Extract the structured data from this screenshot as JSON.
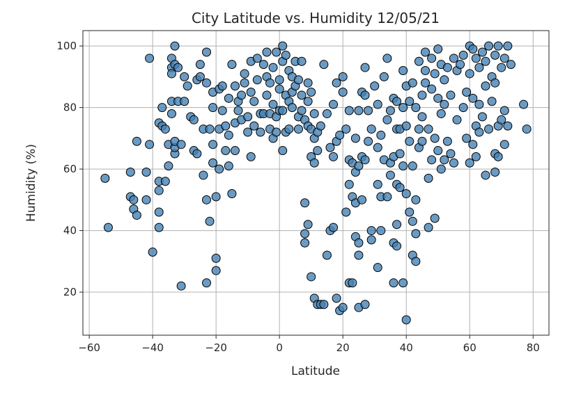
{
  "chart_data": {
    "type": "scatter",
    "title": "City Latitude vs. Humidity 12/05/21",
    "xlabel": "Latitude",
    "ylabel": "Humidity (%)",
    "xlim": [
      -62,
      85
    ],
    "ylim": [
      6,
      105
    ],
    "xticks": [
      -60,
      -40,
      -20,
      0,
      20,
      40,
      60,
      80
    ],
    "yticks": [
      20,
      40,
      60,
      80,
      100
    ],
    "grid": true,
    "marker_color": "#4682B4",
    "marker_edge": "#000000",
    "series": [
      {
        "points": [
          [
            -55,
            57
          ],
          [
            -54,
            41
          ],
          [
            -47,
            51
          ],
          [
            -47,
            59
          ],
          [
            -46,
            47
          ],
          [
            -46,
            50
          ],
          [
            -45,
            45
          ],
          [
            -45,
            69
          ],
          [
            -42,
            59
          ],
          [
            -42,
            50
          ],
          [
            -41,
            68
          ],
          [
            -41,
            96
          ],
          [
            -40,
            33
          ],
          [
            -38,
            41
          ],
          [
            -38,
            46
          ],
          [
            -38,
            53
          ],
          [
            -38,
            56
          ],
          [
            -38,
            75
          ],
          [
            -37,
            80
          ],
          [
            -37,
            74
          ],
          [
            -36,
            73
          ],
          [
            -36,
            56
          ],
          [
            -35,
            68
          ],
          [
            -35,
            61
          ],
          [
            -34,
            78
          ],
          [
            -34,
            82
          ],
          [
            -34,
            96
          ],
          [
            -34,
            93
          ],
          [
            -34,
            91
          ],
          [
            -33,
            65
          ],
          [
            -33,
            67
          ],
          [
            -33,
            69
          ],
          [
            -33,
            100
          ],
          [
            -33,
            94
          ],
          [
            -32,
            93
          ],
          [
            -32,
            82
          ],
          [
            -31,
            22
          ],
          [
            -31,
            68
          ],
          [
            -30,
            82
          ],
          [
            -30,
            90
          ],
          [
            -29,
            87
          ],
          [
            -28,
            77
          ],
          [
            -27,
            76
          ],
          [
            -27,
            66
          ],
          [
            -26,
            65
          ],
          [
            -26,
            89
          ],
          [
            -25,
            90
          ],
          [
            -25,
            94
          ],
          [
            -24,
            58
          ],
          [
            -24,
            73
          ],
          [
            -23,
            50
          ],
          [
            -23,
            23
          ],
          [
            -23,
            88
          ],
          [
            -23,
            98
          ],
          [
            -22,
            73
          ],
          [
            -22,
            43
          ],
          [
            -21,
            62
          ],
          [
            -21,
            68
          ],
          [
            -21,
            85
          ],
          [
            -21,
            80
          ],
          [
            -20,
            31
          ],
          [
            -20,
            27
          ],
          [
            -20,
            51
          ],
          [
            -19,
            60
          ],
          [
            -19,
            73
          ],
          [
            -19,
            86
          ],
          [
            -18,
            87
          ],
          [
            -18,
            79
          ],
          [
            -17,
            66
          ],
          [
            -17,
            74
          ],
          [
            -16,
            61
          ],
          [
            -16,
            71
          ],
          [
            -16,
            83
          ],
          [
            -15,
            52
          ],
          [
            -15,
            94
          ],
          [
            -14,
            66
          ],
          [
            -14,
            75
          ],
          [
            -14,
            87
          ],
          [
            -13,
            82
          ],
          [
            -13,
            79
          ],
          [
            -12,
            76
          ],
          [
            -12,
            84
          ],
          [
            -11,
            88
          ],
          [
            -11,
            91
          ],
          [
            -10,
            72
          ],
          [
            -10,
            77
          ],
          [
            -9,
            64
          ],
          [
            -9,
            85
          ],
          [
            -9,
            95
          ],
          [
            -8,
            74
          ],
          [
            -8,
            82
          ],
          [
            -7,
            89
          ],
          [
            -7,
            96
          ],
          [
            -6,
            78
          ],
          [
            -6,
            72
          ],
          [
            -5,
            78
          ],
          [
            -5,
            94
          ],
          [
            -4,
            84
          ],
          [
            -4,
            90
          ],
          [
            -4,
            98
          ],
          [
            -3,
            73
          ],
          [
            -3,
            78
          ],
          [
            -3,
            88
          ],
          [
            -2,
            70
          ],
          [
            -2,
            81
          ],
          [
            -2,
            93
          ],
          [
            -1,
            72
          ],
          [
            -1,
            98
          ],
          [
            -1,
            77
          ],
          [
            0,
            86
          ],
          [
            0,
            89
          ],
          [
            0,
            79
          ],
          [
            1,
            66
          ],
          [
            1,
            79
          ],
          [
            1,
            95
          ],
          [
            1,
            100
          ],
          [
            2,
            84
          ],
          [
            2,
            97
          ],
          [
            2,
            72
          ],
          [
            3,
            73
          ],
          [
            3,
            82
          ],
          [
            3,
            92
          ],
          [
            4,
            80
          ],
          [
            4,
            85
          ],
          [
            4,
            90
          ],
          [
            5,
            87
          ],
          [
            5,
            95
          ],
          [
            6,
            73
          ],
          [
            6,
            77
          ],
          [
            6,
            89
          ],
          [
            7,
            79
          ],
          [
            7,
            84
          ],
          [
            7,
            95
          ],
          [
            8,
            49
          ],
          [
            8,
            36
          ],
          [
            8,
            39
          ],
          [
            8,
            76
          ],
          [
            9,
            42
          ],
          [
            9,
            74
          ],
          [
            9,
            82
          ],
          [
            9,
            88
          ],
          [
            10,
            64
          ],
          [
            10,
            25
          ],
          [
            10,
            73
          ],
          [
            10,
            85
          ],
          [
            11,
            18
          ],
          [
            11,
            62
          ],
          [
            11,
            70
          ],
          [
            11,
            78
          ],
          [
            12,
            16
          ],
          [
            12,
            66
          ],
          [
            12,
            72
          ],
          [
            13,
            16
          ],
          [
            13,
            74
          ],
          [
            14,
            16
          ],
          [
            14,
            94
          ],
          [
            15,
            32
          ],
          [
            15,
            78
          ],
          [
            16,
            40
          ],
          [
            16,
            67
          ],
          [
            17,
            64
          ],
          [
            17,
            41
          ],
          [
            17,
            81
          ],
          [
            18,
            18
          ],
          [
            18,
            69
          ],
          [
            18,
            88
          ],
          [
            19,
            14
          ],
          [
            19,
            71
          ],
          [
            20,
            15
          ],
          [
            20,
            85
          ],
          [
            20,
            90
          ],
          [
            21,
            46
          ],
          [
            21,
            73
          ],
          [
            22,
            23
          ],
          [
            22,
            55
          ],
          [
            22,
            63
          ],
          [
            22,
            79
          ],
          [
            23,
            23
          ],
          [
            23,
            51
          ],
          [
            23,
            62
          ],
          [
            24,
            38
          ],
          [
            24,
            49
          ],
          [
            24,
            59
          ],
          [
            24,
            70
          ],
          [
            25,
            15
          ],
          [
            25,
            32
          ],
          [
            25,
            36
          ],
          [
            25,
            61
          ],
          [
            25,
            79
          ],
          [
            26,
            50
          ],
          [
            26,
            64
          ],
          [
            26,
            85
          ],
          [
            27,
            16
          ],
          [
            27,
            63
          ],
          [
            27,
            84
          ],
          [
            27,
            93
          ],
          [
            28,
            69
          ],
          [
            28,
            79
          ],
          [
            29,
            37
          ],
          [
            29,
            40
          ],
          [
            29,
            73
          ],
          [
            30,
            87
          ],
          [
            31,
            28
          ],
          [
            31,
            55
          ],
          [
            31,
            67
          ],
          [
            31,
            81
          ],
          [
            32,
            40
          ],
          [
            32,
            51
          ],
          [
            32,
            71
          ],
          [
            33,
            63
          ],
          [
            33,
            90
          ],
          [
            34,
            51
          ],
          [
            34,
            96
          ],
          [
            34,
            76
          ],
          [
            35,
            58
          ],
          [
            35,
            62
          ],
          [
            35,
            79
          ],
          [
            36,
            36
          ],
          [
            36,
            23
          ],
          [
            36,
            64
          ],
          [
            36,
            83
          ],
          [
            37,
            35
          ],
          [
            37,
            42
          ],
          [
            37,
            55
          ],
          [
            37,
            73
          ],
          [
            37,
            82
          ],
          [
            38,
            54
          ],
          [
            38,
            65
          ],
          [
            38,
            73
          ],
          [
            39,
            23
          ],
          [
            39,
            61
          ],
          [
            39,
            80
          ],
          [
            39,
            92
          ],
          [
            40,
            11
          ],
          [
            40,
            74
          ],
          [
            40,
            52
          ],
          [
            40,
            87
          ],
          [
            41,
            46
          ],
          [
            41,
            69
          ],
          [
            41,
            82
          ],
          [
            42,
            32
          ],
          [
            42,
            43
          ],
          [
            42,
            61
          ],
          [
            42,
            88
          ],
          [
            43,
            30
          ],
          [
            43,
            50
          ],
          [
            43,
            39
          ],
          [
            43,
            80
          ],
          [
            44,
            73
          ],
          [
            44,
            67
          ],
          [
            44,
            95
          ],
          [
            45,
            77
          ],
          [
            45,
            69
          ],
          [
            45,
            84
          ],
          [
            46,
            88
          ],
          [
            46,
            92
          ],
          [
            46,
            98
          ],
          [
            47,
            57
          ],
          [
            47,
            41
          ],
          [
            47,
            73
          ],
          [
            48,
            63
          ],
          [
            48,
            86
          ],
          [
            48,
            96
          ],
          [
            49,
            44
          ],
          [
            49,
            70
          ],
          [
            49,
            91
          ],
          [
            50,
            66
          ],
          [
            50,
            83
          ],
          [
            50,
            99
          ],
          [
            51,
            60
          ],
          [
            51,
            78
          ],
          [
            51,
            94
          ],
          [
            52,
            63
          ],
          [
            52,
            81
          ],
          [
            52,
            89
          ],
          [
            53,
            69
          ],
          [
            53,
            93
          ],
          [
            54,
            65
          ],
          [
            54,
            84
          ],
          [
            55,
            96
          ],
          [
            55,
            62
          ],
          [
            56,
            76
          ],
          [
            56,
            92
          ],
          [
            57,
            94
          ],
          [
            58,
            80
          ],
          [
            58,
            97
          ],
          [
            59,
            70
          ],
          [
            59,
            85
          ],
          [
            60,
            62
          ],
          [
            60,
            91
          ],
          [
            60,
            100
          ],
          [
            61,
            68
          ],
          [
            61,
            83
          ],
          [
            61,
            99
          ],
          [
            62,
            64
          ],
          [
            62,
            74
          ],
          [
            62,
            96
          ],
          [
            63,
            72
          ],
          [
            63,
            81
          ],
          [
            63,
            93
          ],
          [
            64,
            77
          ],
          [
            64,
            98
          ],
          [
            65,
            58
          ],
          [
            65,
            87
          ],
          [
            65,
            95
          ],
          [
            66,
            73
          ],
          [
            66,
            100
          ],
          [
            67,
            90
          ],
          [
            67,
            82
          ],
          [
            68,
            65
          ],
          [
            68,
            59
          ],
          [
            68,
            88
          ],
          [
            68,
            97
          ],
          [
            69,
            64
          ],
          [
            69,
            74
          ],
          [
            69,
            100
          ],
          [
            70,
            76
          ],
          [
            70,
            93
          ],
          [
            71,
            68
          ],
          [
            71,
            79
          ],
          [
            71,
            96
          ],
          [
            72,
            74
          ],
          [
            72,
            100
          ],
          [
            73,
            94
          ],
          [
            77,
            81
          ],
          [
            78,
            73
          ]
        ]
      }
    ]
  }
}
